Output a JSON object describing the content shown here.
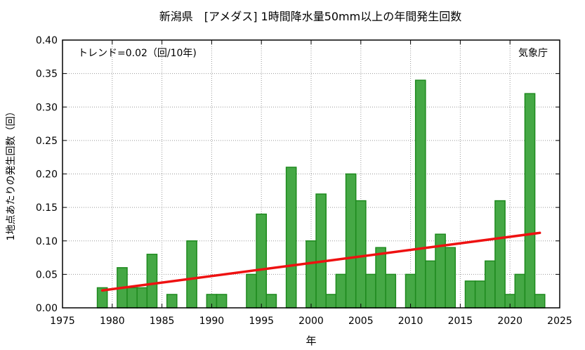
{
  "chart_data": {
    "type": "bar",
    "title": "新潟県　[アメダス] 1時間降水量50mm以上の年間発生回数",
    "xlabel": "年",
    "ylabel": "1地点あたりの発生回数（回）",
    "trend_label": "トレンド=0.02（回/10年)",
    "source_label": "気象庁",
    "xlim": [
      1975,
      2025
    ],
    "ylim": [
      0,
      0.4
    ],
    "grid": true,
    "x_ticks": [
      "1975",
      "1980",
      "1985",
      "1990",
      "1995",
      "2000",
      "2005",
      "2010",
      "2015",
      "2020",
      "2025"
    ],
    "y_ticks": [
      "0.00",
      "0.05",
      "0.10",
      "0.15",
      "0.20",
      "0.25",
      "0.30",
      "0.35",
      "0.40"
    ],
    "bar_color": "#45a845",
    "bar_edge_color": "#1e8a1e",
    "trend_color": "#ee1111",
    "x": [
      1979,
      1980,
      1981,
      1982,
      1983,
      1984,
      1985,
      1986,
      1987,
      1988,
      1989,
      1990,
      1991,
      1992,
      1993,
      1994,
      1995,
      1996,
      1997,
      1998,
      1999,
      2000,
      2001,
      2002,
      2003,
      2004,
      2005,
      2006,
      2007,
      2008,
      2009,
      2010,
      2011,
      2012,
      2013,
      2014,
      2015,
      2016,
      2017,
      2018,
      2019,
      2020,
      2021,
      2022,
      2023
    ],
    "values": [
      0.03,
      0.0,
      0.06,
      0.03,
      0.03,
      0.08,
      0.0,
      0.02,
      0.0,
      0.1,
      0.0,
      0.02,
      0.02,
      0.0,
      0.0,
      0.05,
      0.14,
      0.02,
      0.0,
      0.21,
      0.0,
      0.1,
      0.17,
      0.02,
      0.05,
      0.2,
      0.16,
      0.05,
      0.09,
      0.05,
      0.0,
      0.05,
      0.34,
      0.07,
      0.11,
      0.09,
      0.0,
      0.04,
      0.04,
      0.07,
      0.16,
      0.02,
      0.05,
      0.32,
      0.02
    ],
    "trend": {
      "x": [
        1979,
        2023
      ],
      "y": [
        0.026,
        0.112
      ]
    }
  }
}
